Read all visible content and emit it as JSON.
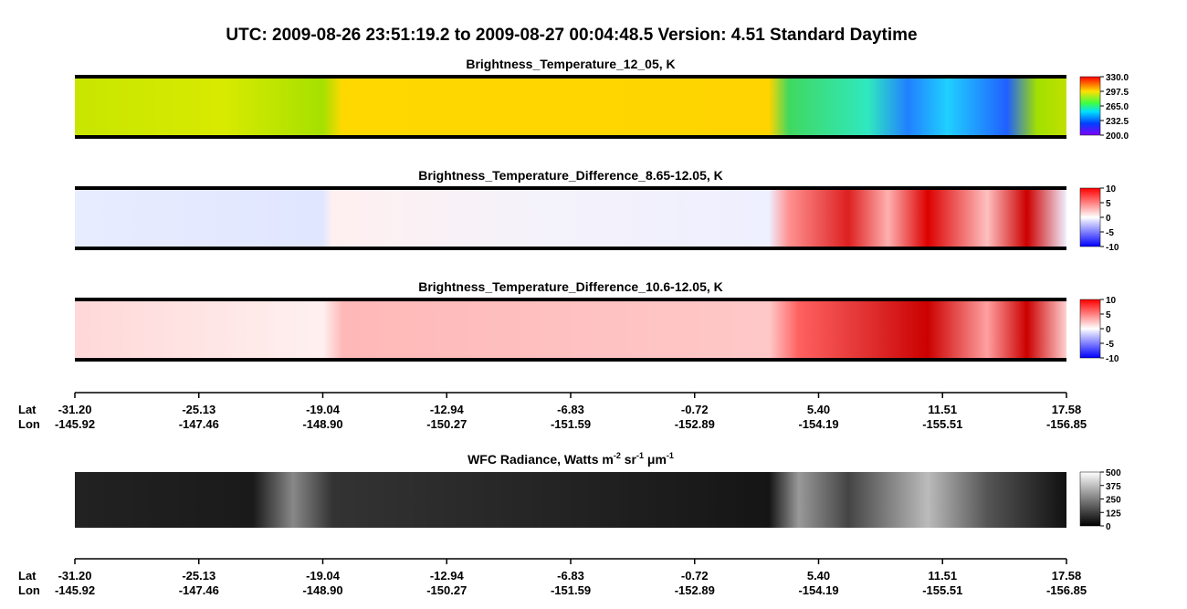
{
  "header": {
    "title": "UTC:  2009-08-26   23:51:19.2  to  2009-08-27   00:04:48.5    Version: 4.51  Standard Daytime"
  },
  "panels": [
    {
      "title": "Brightness_Temperature_12_05, K",
      "colorbar": [
        "330.0",
        "297.5",
        "265.0",
        "232.5",
        "200.0"
      ]
    },
    {
      "title": "Brightness_Temperature_Difference_8.65-12.05, K",
      "colorbar": [
        "10",
        "5",
        "0",
        "-5",
        "-10"
      ]
    },
    {
      "title": "Brightness_Temperature_Difference_10.6-12.05, K",
      "colorbar": [
        "10",
        "5",
        "0",
        "-5",
        "-10"
      ]
    },
    {
      "title_parts": [
        "WFC Radiance, Watts m",
        "-2",
        " sr",
        "-1",
        " μm",
        "-1"
      ],
      "colorbar": [
        "500",
        "375",
        "250",
        "125",
        "0"
      ]
    }
  ],
  "axis": {
    "lat_label": "Lat",
    "lon_label": "Lon",
    "lat": [
      "-31.20",
      "-25.13",
      "-19.04",
      "-12.94",
      "-6.83",
      "-0.72",
      "5.40",
      "11.51",
      "17.58"
    ],
    "lon": [
      "-145.92",
      "-147.46",
      "-148.90",
      "-150.27",
      "-151.59",
      "-152.89",
      "-154.19",
      "-155.51",
      "-156.85"
    ]
  }
}
